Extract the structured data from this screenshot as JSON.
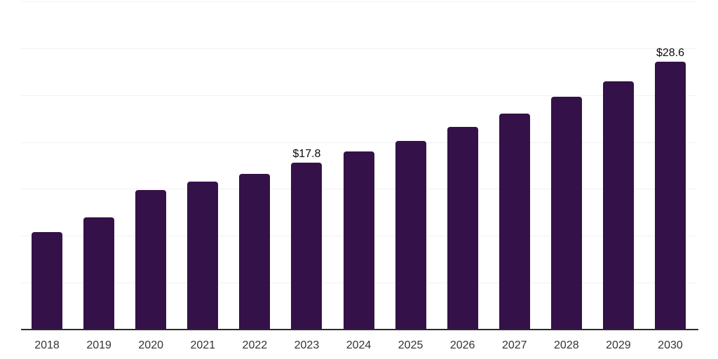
{
  "chart_data": {
    "type": "bar",
    "title": "",
    "xlabel": "",
    "ylabel": "",
    "categories": [
      "2018",
      "2019",
      "2020",
      "2021",
      "2022",
      "2023",
      "2024",
      "2025",
      "2026",
      "2027",
      "2028",
      "2029",
      "2030"
    ],
    "values": [
      10.4,
      12.0,
      14.9,
      15.8,
      16.6,
      17.8,
      19.0,
      20.1,
      21.6,
      23.0,
      24.8,
      26.5,
      28.6
    ],
    "point_labels": [
      "",
      "",
      "",
      "",
      "",
      "$17.8",
      "",
      "",
      "",
      "",
      "",
      "",
      "$28.6"
    ],
    "ylim": [
      0,
      35
    ],
    "grid_step": 5,
    "grid": "horizontal",
    "legend": "none",
    "colors": {
      "bar": "#341148",
      "axis_line": "#2b2b2b",
      "gridline": "#f1f1f1",
      "tick_label": "#333333",
      "value_label": "#0b0b0b",
      "background": "#ffffff"
    }
  }
}
